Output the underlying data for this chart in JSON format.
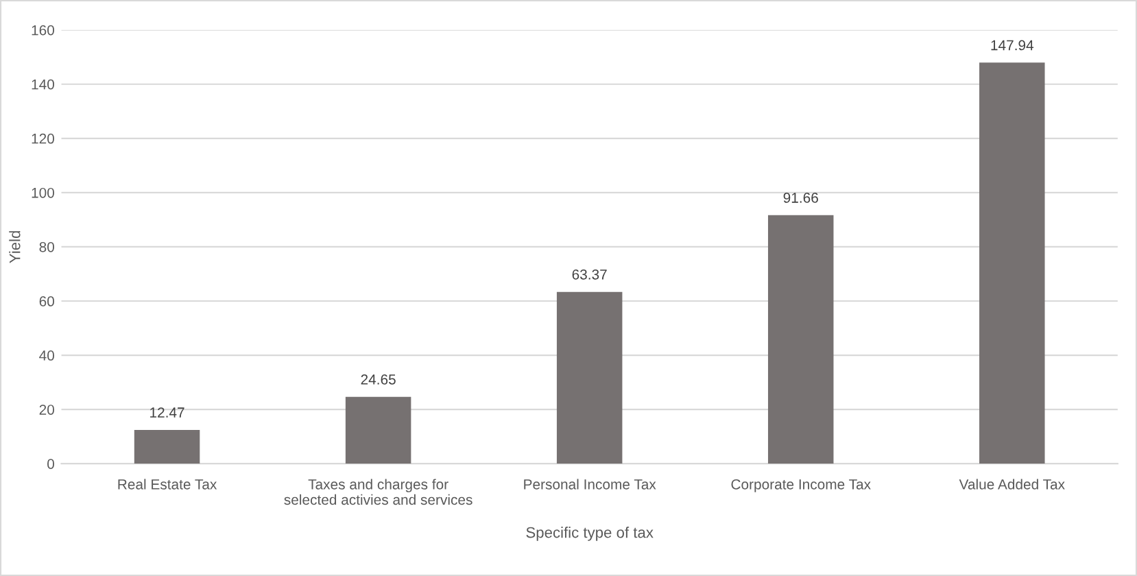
{
  "chart_data": {
    "type": "bar",
    "xlabel": "Specific type of tax",
    "ylabel": "Yield",
    "categories": [
      "Real Estate Tax",
      "Taxes and charges for\nselected activies and services",
      "Personal Income Tax",
      "Corporate Income Tax",
      "Value Added Tax"
    ],
    "values": [
      12.47,
      24.65,
      63.37,
      91.66,
      147.94
    ],
    "color": "#767171",
    "ylim": [
      0,
      160
    ],
    "yticks": [
      0,
      20,
      40,
      60,
      80,
      100,
      120,
      140,
      160
    ],
    "grid": "y",
    "data_labels": true,
    "legend": false
  }
}
